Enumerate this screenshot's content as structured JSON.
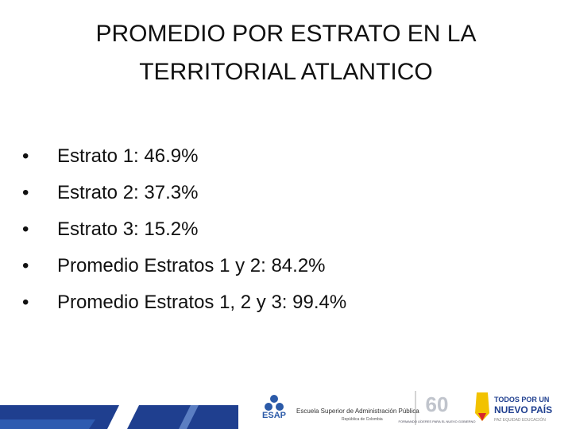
{
  "header": {
    "title_lines": [
      "PROMEDIO POR ESTRATO EN LA",
      "TERRITORIAL ATLANTICO"
    ]
  },
  "bullets": [
    "Estrato 1: 46.9%",
    "Estrato 2: 37.3%",
    "Estrato 3: 15.2%",
    "Promedio Estratos 1 y 2: 84.2%",
    "Promedio Estratos 1, 2 y 3: 99.4%"
  ],
  "footer": {
    "esap_acronym": "ESAP",
    "esap_name": "Escuela Superior de Administración Pública",
    "esap_country": "República de Colombia",
    "anniversary": "60",
    "anniversary_motto": "FORMANDO LÍDERES PARA EL NUEVO GOBIERNO",
    "gov_line1": "TODOS POR UN",
    "gov_line2": "NUEVO PAÍS",
    "gov_motto": "PAZ  EQUIDAD  EDUCACIÓN"
  }
}
